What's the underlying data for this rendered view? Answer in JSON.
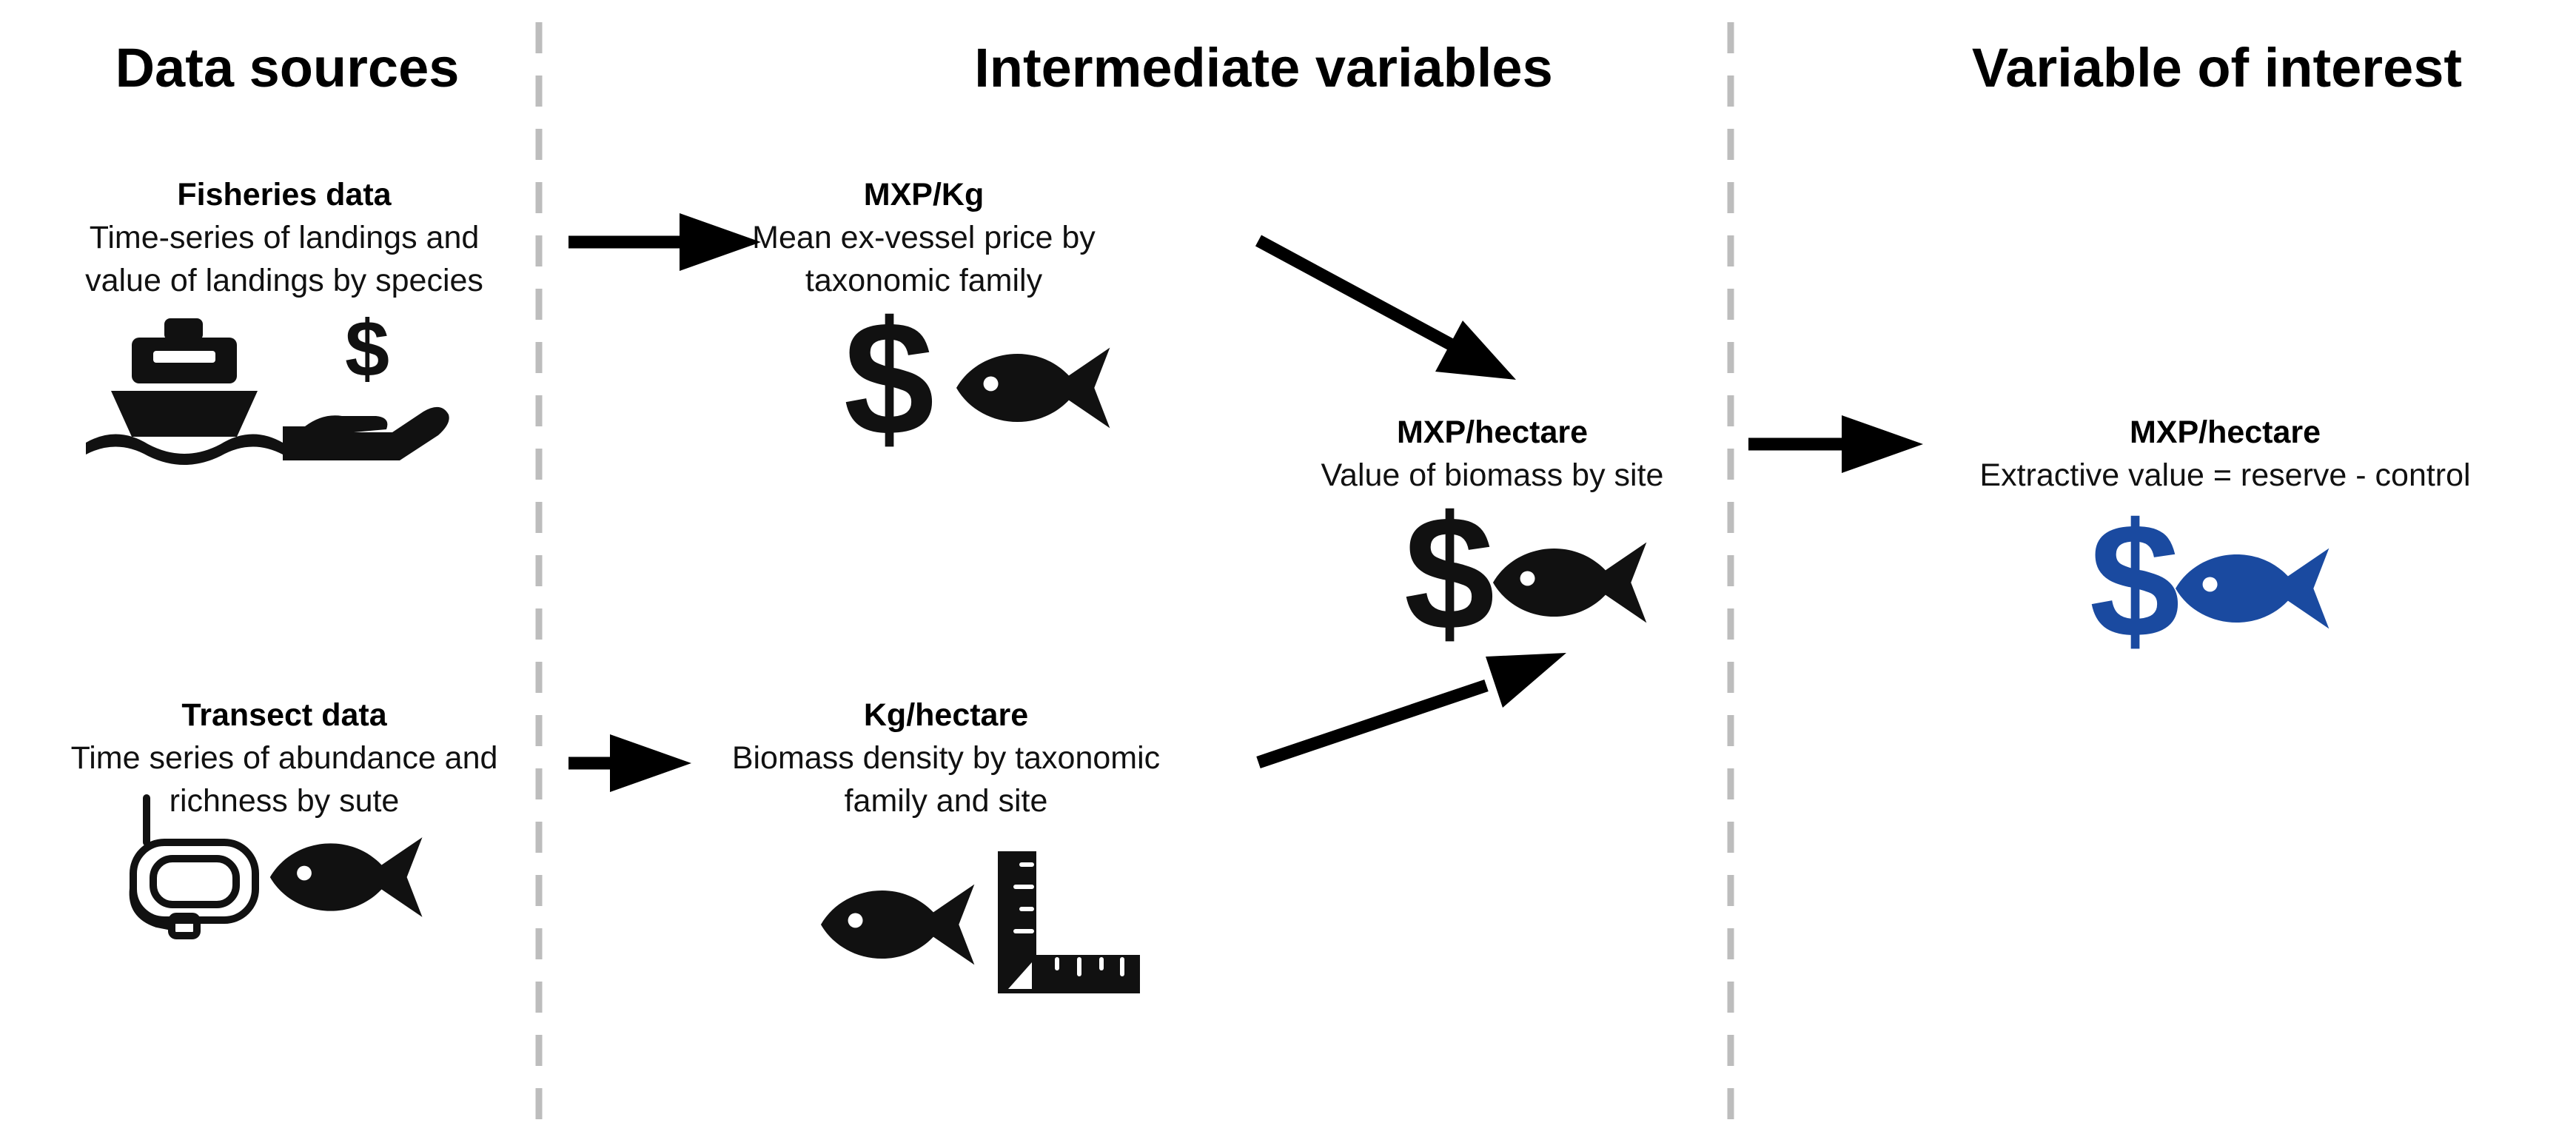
{
  "columns": [
    {
      "heading": "Data sources"
    },
    {
      "heading": "Intermediate variables"
    },
    {
      "heading": "Variable of interest"
    }
  ],
  "nodes": {
    "fisheries": {
      "title": "Fisheries data",
      "lines": [
        "Time-series of landings and",
        "value of landings by species"
      ],
      "icons": [
        "ship-icon",
        "hand-dollar-icon"
      ]
    },
    "transect": {
      "title": "Transect data",
      "lines": [
        "Time series of abundance and",
        "richness by sute"
      ],
      "icons": [
        "snorkel-mask-icon",
        "fish-icon"
      ]
    },
    "mxp_kg": {
      "title": "MXP/Kg",
      "lines": [
        "Mean ex-vessel price by",
        "taxonomic family"
      ],
      "icons": [
        "dollar-icon",
        "fish-icon"
      ]
    },
    "kg_hectare": {
      "title": "Kg/hectare",
      "lines": [
        "Biomass density by taxonomic",
        "family and site"
      ],
      "icons": [
        "fish-icon",
        "ruler-icon"
      ]
    },
    "mxp_hectare_mid": {
      "title": "MXP/hectare",
      "lines": [
        "Value of biomass by site"
      ],
      "icons": [
        "dollar-icon",
        "fish-icon"
      ]
    },
    "mxp_hectare_final": {
      "title": "MXP/hectare",
      "lines": [
        "Extractive value = reserve - control"
      ],
      "icons": [
        "dollar-icon",
        "fish-icon"
      ]
    }
  },
  "colors": {
    "ink": "#111111",
    "accent_blue": "#1a4aa0",
    "divider_gray": "#bdbdbd"
  },
  "glyphs": {
    "dollar": "$"
  }
}
